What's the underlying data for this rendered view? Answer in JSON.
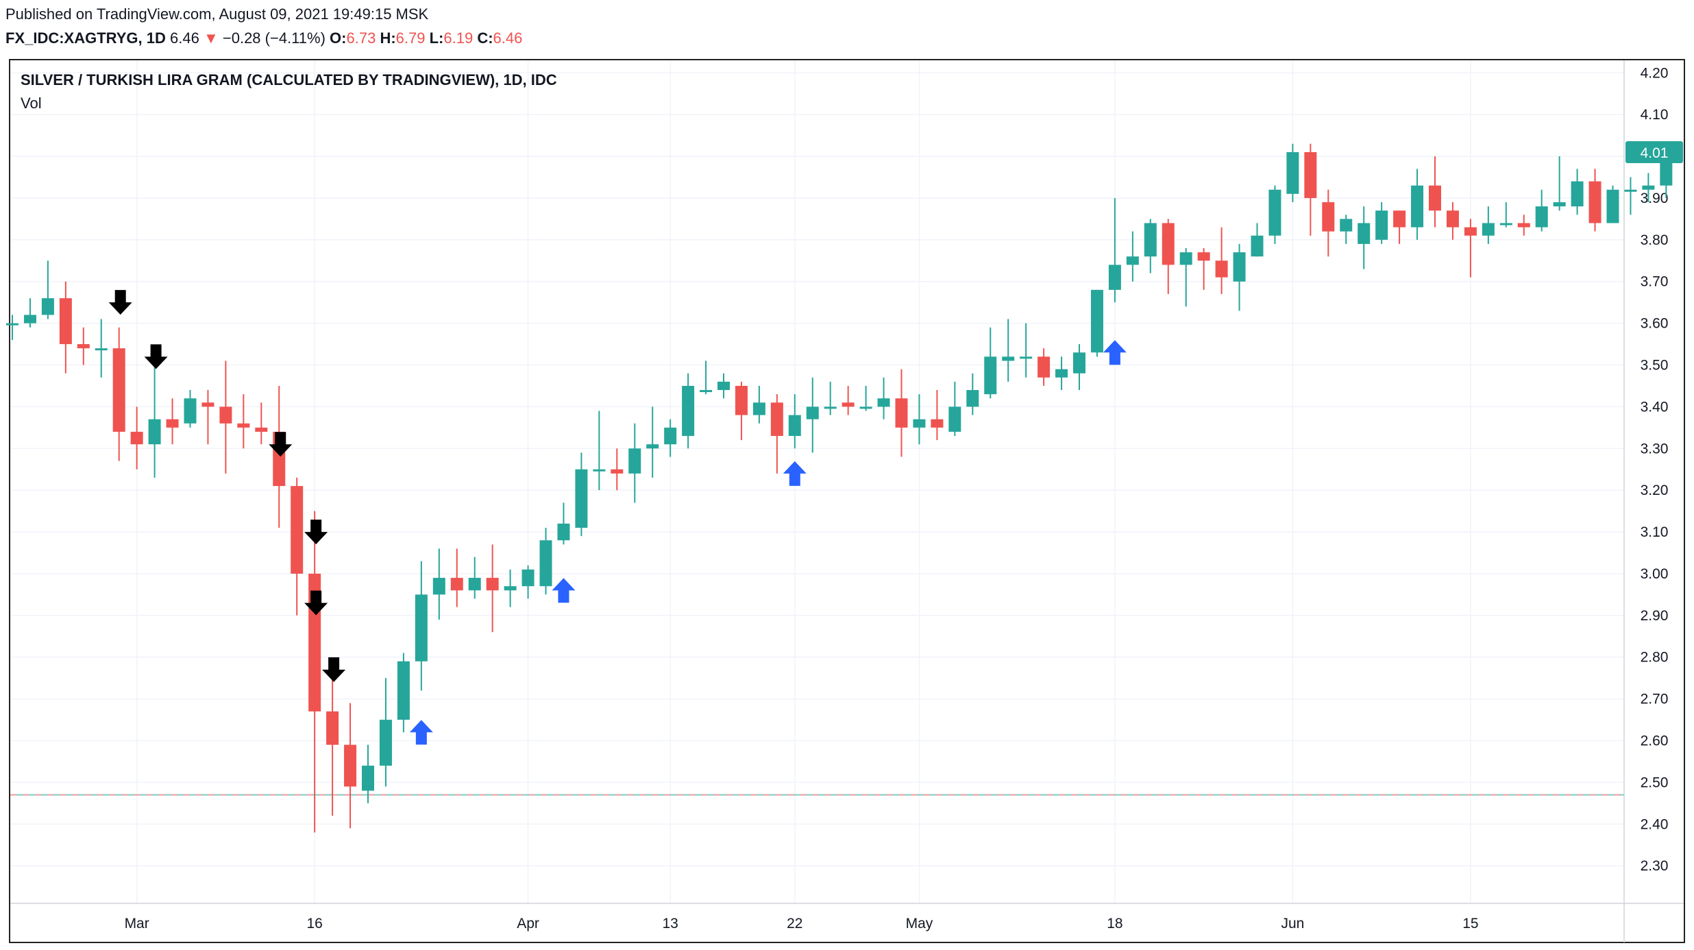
{
  "header": {
    "published": "Published on TradingView.com, August 09, 2021 19:49:15 MSK",
    "symbol": "FX_IDC:XAGTRYG, 1D",
    "last": "6.46",
    "change_arrow": "▼",
    "change": "−0.28 (−4.11%)",
    "o_label": "O:",
    "o_value": "6.73",
    "h_label": "H:",
    "h_value": "6.79",
    "l_label": "L:",
    "l_value": "6.19",
    "c_label": "C:",
    "c_value": "6.46"
  },
  "legend": {
    "title": "SILVER / TURKISH LIRA GRAM (CALCULATED BY TRADINGVIEW), 1D, IDC",
    "indicator": "Vol"
  },
  "colors": {
    "up": "#26a69a",
    "down": "#ef5350",
    "grid": "#f0f3fa",
    "price_label_bg": "#26a69a",
    "buy_arrow": "#2962ff",
    "sell_arrow": "#000000"
  },
  "chart_data": {
    "type": "candlestick",
    "y_ticks": [
      2.3,
      2.4,
      2.5,
      2.6,
      2.7,
      2.8,
      2.9,
      3.0,
      3.1,
      3.2,
      3.3,
      3.4,
      3.5,
      3.6,
      3.7,
      3.8,
      3.9,
      4.0,
      4.1,
      4.2
    ],
    "ylim": [
      2.21,
      4.23
    ],
    "last_price_label": "4.01",
    "last_price": 4.01,
    "reference_line": 2.47,
    "x_ticks": [
      {
        "label": "Mar",
        "index": 7
      },
      {
        "label": "16",
        "index": 17
      },
      {
        "label": "Apr",
        "index": 29
      },
      {
        "label": "13",
        "index": 37
      },
      {
        "label": "22",
        "index": 44
      },
      {
        "label": "May",
        "index": 51
      },
      {
        "label": "18",
        "index": 62
      },
      {
        "label": "Jun",
        "index": 72
      },
      {
        "label": "15",
        "index": 82
      }
    ],
    "candles": [
      {
        "o": 3.6,
        "h": 3.62,
        "l": 3.56,
        "c": 3.6
      },
      {
        "o": 3.6,
        "h": 3.66,
        "l": 3.59,
        "c": 3.62
      },
      {
        "o": 3.62,
        "h": 3.75,
        "l": 3.61,
        "c": 3.66
      },
      {
        "o": 3.66,
        "h": 3.7,
        "l": 3.48,
        "c": 3.55
      },
      {
        "o": 3.55,
        "h": 3.59,
        "l": 3.5,
        "c": 3.54
      },
      {
        "o": 3.54,
        "h": 3.61,
        "l": 3.47,
        "c": 3.54
      },
      {
        "o": 3.54,
        "h": 3.59,
        "l": 3.27,
        "c": 3.34
      },
      {
        "o": 3.34,
        "h": 3.4,
        "l": 3.25,
        "c": 3.31
      },
      {
        "o": 3.31,
        "h": 3.5,
        "l": 3.23,
        "c": 3.37
      },
      {
        "o": 3.37,
        "h": 3.42,
        "l": 3.31,
        "c": 3.35
      },
      {
        "o": 3.36,
        "h": 3.44,
        "l": 3.35,
        "c": 3.42
      },
      {
        "o": 3.41,
        "h": 3.44,
        "l": 3.31,
        "c": 3.4
      },
      {
        "o": 3.4,
        "h": 3.51,
        "l": 3.24,
        "c": 3.36
      },
      {
        "o": 3.36,
        "h": 3.43,
        "l": 3.3,
        "c": 3.35
      },
      {
        "o": 3.35,
        "h": 3.41,
        "l": 3.31,
        "c": 3.34
      },
      {
        "o": 3.34,
        "h": 3.45,
        "l": 3.11,
        "c": 3.21
      },
      {
        "o": 3.21,
        "h": 3.23,
        "l": 2.9,
        "c": 3.0
      },
      {
        "o": 3.0,
        "h": 3.15,
        "l": 2.38,
        "c": 2.67
      },
      {
        "o": 2.67,
        "h": 2.77,
        "l": 2.42,
        "c": 2.59
      },
      {
        "o": 2.59,
        "h": 2.69,
        "l": 2.39,
        "c": 2.49
      },
      {
        "o": 2.48,
        "h": 2.59,
        "l": 2.45,
        "c": 2.54
      },
      {
        "o": 2.54,
        "h": 2.75,
        "l": 2.49,
        "c": 2.65
      },
      {
        "o": 2.65,
        "h": 2.81,
        "l": 2.62,
        "c": 2.79
      },
      {
        "o": 2.79,
        "h": 3.03,
        "l": 2.72,
        "c": 2.95
      },
      {
        "o": 2.95,
        "h": 3.06,
        "l": 2.89,
        "c": 2.99
      },
      {
        "o": 2.99,
        "h": 3.06,
        "l": 2.92,
        "c": 2.96
      },
      {
        "o": 2.96,
        "h": 3.04,
        "l": 2.94,
        "c": 2.99
      },
      {
        "o": 2.99,
        "h": 3.07,
        "l": 2.86,
        "c": 2.96
      },
      {
        "o": 2.96,
        "h": 3.01,
        "l": 2.92,
        "c": 2.97
      },
      {
        "o": 2.97,
        "h": 3.02,
        "l": 2.94,
        "c": 3.01
      },
      {
        "o": 2.97,
        "h": 3.11,
        "l": 2.95,
        "c": 3.08
      },
      {
        "o": 3.08,
        "h": 3.17,
        "l": 3.07,
        "c": 3.12
      },
      {
        "o": 3.11,
        "h": 3.29,
        "l": 3.09,
        "c": 3.25
      },
      {
        "o": 3.25,
        "h": 3.39,
        "l": 3.2,
        "c": 3.25
      },
      {
        "o": 3.25,
        "h": 3.3,
        "l": 3.2,
        "c": 3.24
      },
      {
        "o": 3.24,
        "h": 3.36,
        "l": 3.17,
        "c": 3.3
      },
      {
        "o": 3.3,
        "h": 3.4,
        "l": 3.23,
        "c": 3.31
      },
      {
        "o": 3.31,
        "h": 3.37,
        "l": 3.28,
        "c": 3.35
      },
      {
        "o": 3.33,
        "h": 3.48,
        "l": 3.3,
        "c": 3.45
      },
      {
        "o": 3.44,
        "h": 3.51,
        "l": 3.43,
        "c": 3.44
      },
      {
        "o": 3.44,
        "h": 3.48,
        "l": 3.42,
        "c": 3.46
      },
      {
        "o": 3.45,
        "h": 3.46,
        "l": 3.32,
        "c": 3.38
      },
      {
        "o": 3.38,
        "h": 3.45,
        "l": 3.36,
        "c": 3.41
      },
      {
        "o": 3.41,
        "h": 3.43,
        "l": 3.24,
        "c": 3.33
      },
      {
        "o": 3.33,
        "h": 3.43,
        "l": 3.3,
        "c": 3.38
      },
      {
        "o": 3.37,
        "h": 3.47,
        "l": 3.29,
        "c": 3.4
      },
      {
        "o": 3.4,
        "h": 3.46,
        "l": 3.38,
        "c": 3.4
      },
      {
        "o": 3.41,
        "h": 3.45,
        "l": 3.38,
        "c": 3.4
      },
      {
        "o": 3.4,
        "h": 3.45,
        "l": 3.39,
        "c": 3.4
      },
      {
        "o": 3.4,
        "h": 3.47,
        "l": 3.37,
        "c": 3.42
      },
      {
        "o": 3.42,
        "h": 3.49,
        "l": 3.28,
        "c": 3.35
      },
      {
        "o": 3.35,
        "h": 3.43,
        "l": 3.31,
        "c": 3.37
      },
      {
        "o": 3.37,
        "h": 3.44,
        "l": 3.32,
        "c": 3.35
      },
      {
        "o": 3.34,
        "h": 3.46,
        "l": 3.33,
        "c": 3.4
      },
      {
        "o": 3.4,
        "h": 3.48,
        "l": 3.38,
        "c": 3.44
      },
      {
        "o": 3.43,
        "h": 3.59,
        "l": 3.42,
        "c": 3.52
      },
      {
        "o": 3.51,
        "h": 3.61,
        "l": 3.46,
        "c": 3.52
      },
      {
        "o": 3.52,
        "h": 3.6,
        "l": 3.47,
        "c": 3.52
      },
      {
        "o": 3.52,
        "h": 3.54,
        "l": 3.45,
        "c": 3.47
      },
      {
        "o": 3.47,
        "h": 3.52,
        "l": 3.44,
        "c": 3.49
      },
      {
        "o": 3.48,
        "h": 3.55,
        "l": 3.44,
        "c": 3.53
      },
      {
        "o": 3.53,
        "h": 3.68,
        "l": 3.52,
        "c": 3.68
      },
      {
        "o": 3.68,
        "h": 3.9,
        "l": 3.65,
        "c": 3.74
      },
      {
        "o": 3.74,
        "h": 3.82,
        "l": 3.7,
        "c": 3.76
      },
      {
        "o": 3.76,
        "h": 3.85,
        "l": 3.72,
        "c": 3.84
      },
      {
        "o": 3.84,
        "h": 3.85,
        "l": 3.67,
        "c": 3.74
      },
      {
        "o": 3.74,
        "h": 3.78,
        "l": 3.64,
        "c": 3.77
      },
      {
        "o": 3.77,
        "h": 3.78,
        "l": 3.68,
        "c": 3.75
      },
      {
        "o": 3.75,
        "h": 3.83,
        "l": 3.67,
        "c": 3.71
      },
      {
        "o": 3.7,
        "h": 3.79,
        "l": 3.63,
        "c": 3.77
      },
      {
        "o": 3.76,
        "h": 3.84,
        "l": 3.76,
        "c": 3.81
      },
      {
        "o": 3.81,
        "h": 3.93,
        "l": 3.79,
        "c": 3.92
      },
      {
        "o": 3.91,
        "h": 4.03,
        "l": 3.89,
        "c": 4.01
      },
      {
        "o": 4.01,
        "h": 4.03,
        "l": 3.81,
        "c": 3.9
      },
      {
        "o": 3.89,
        "h": 3.92,
        "l": 3.76,
        "c": 3.82
      },
      {
        "o": 3.82,
        "h": 3.86,
        "l": 3.79,
        "c": 3.85
      },
      {
        "o": 3.79,
        "h": 3.88,
        "l": 3.73,
        "c": 3.84
      },
      {
        "o": 3.8,
        "h": 3.89,
        "l": 3.79,
        "c": 3.87
      },
      {
        "o": 3.87,
        "h": 3.87,
        "l": 3.79,
        "c": 3.83
      },
      {
        "o": 3.83,
        "h": 3.97,
        "l": 3.8,
        "c": 3.93
      },
      {
        "o": 3.93,
        "h": 4.0,
        "l": 3.83,
        "c": 3.87
      },
      {
        "o": 3.87,
        "h": 3.89,
        "l": 3.8,
        "c": 3.83
      },
      {
        "o": 3.83,
        "h": 3.85,
        "l": 3.71,
        "c": 3.81
      },
      {
        "o": 3.81,
        "h": 3.88,
        "l": 3.79,
        "c": 3.84
      },
      {
        "o": 3.84,
        "h": 3.89,
        "l": 3.83,
        "c": 3.84
      },
      {
        "o": 3.84,
        "h": 3.86,
        "l": 3.81,
        "c": 3.83
      },
      {
        "o": 3.83,
        "h": 3.92,
        "l": 3.82,
        "c": 3.88
      },
      {
        "o": 3.88,
        "h": 4.0,
        "l": 3.87,
        "c": 3.89
      },
      {
        "o": 3.88,
        "h": 3.97,
        "l": 3.86,
        "c": 3.94
      },
      {
        "o": 3.94,
        "h": 3.97,
        "l": 3.82,
        "c": 3.84
      },
      {
        "o": 3.84,
        "h": 3.93,
        "l": 3.84,
        "c": 3.92
      },
      {
        "o": 3.92,
        "h": 3.95,
        "l": 3.86,
        "c": 3.92
      },
      {
        "o": 3.92,
        "h": 3.96,
        "l": 3.89,
        "c": 3.93
      },
      {
        "o": 3.93,
        "h": 4.01,
        "l": 3.9,
        "c": 4.01
      }
    ],
    "sell_arrows": [
      6,
      8,
      15,
      17,
      17,
      18
    ],
    "sell_arrow_levels": [
      3.65,
      3.52,
      3.31,
      3.1,
      2.93,
      2.77
    ],
    "buy_arrows": [
      23,
      31,
      44,
      62
    ],
    "buy_arrow_levels": [
      2.62,
      2.96,
      3.24,
      3.53
    ]
  }
}
